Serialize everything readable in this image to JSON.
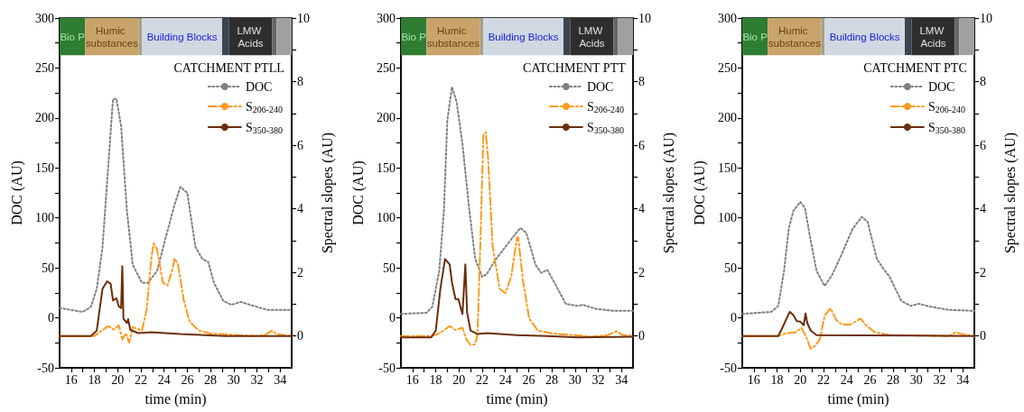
{
  "chart_data": [
    {
      "type": "line",
      "title": "CATCHMENT PTLL",
      "xlabel": "time (min)",
      "ylabel": "DOC (AU)",
      "y2label": "Spectral slopes (AU)",
      "xlim": [
        15,
        35
      ],
      "xticks": [
        16,
        {
          "value": 17,
          "label": null
        },
        18,
        {
          "value": 19,
          "label": null
        },
        20,
        {
          "value": 21,
          "label": null
        },
        22,
        {
          "value": 23,
          "label": null
        },
        24,
        {
          "value": 25,
          "label": null
        },
        26,
        {
          "value": 27,
          "label": null
        },
        28,
        {
          "value": 29,
          "label": null
        },
        30,
        {
          "value": 31,
          "label": null
        },
        32,
        {
          "value": 33,
          "label": null
        },
        34
      ],
      "ylim": [
        -50,
        300
      ],
      "yticks": [
        -50,
        {
          "value": -25,
          "label": null
        },
        0,
        {
          "value": 25,
          "label": null
        },
        50,
        {
          "value": 75,
          "label": null
        },
        100,
        {
          "value": 125,
          "label": null
        },
        150,
        {
          "value": 175,
          "label": null
        },
        200,
        {
          "value": 225,
          "label": null
        },
        250,
        {
          "value": 275,
          "label": null
        },
        300
      ],
      "y2lim": [
        -1,
        10
      ],
      "y2ticks": [
        0,
        {
          "value": 1,
          "label": null
        },
        2,
        {
          "value": 3,
          "label": null
        },
        4,
        {
          "value": 5,
          "label": null
        },
        6,
        {
          "value": 7,
          "label": null
        },
        8,
        {
          "value": 9,
          "label": null
        },
        10
      ],
      "grid": false,
      "legend": "top right",
      "marker": "none",
      "bands": [
        {
          "axis": "x",
          "from": 15,
          "to": 17.2,
          "label": "Bio P",
          "color": "#2e7d32"
        },
        {
          "axis": "x",
          "from": 17.2,
          "to": 21.8,
          "label": "Humic substances",
          "color": "#c8a46a"
        },
        {
          "axis": "x",
          "from": 21.8,
          "to": 22.1,
          "color": "#a89f86"
        },
        {
          "axis": "x",
          "from": 22.1,
          "to": 29,
          "label": "Building Blocks",
          "color": "#d0d8e2"
        },
        {
          "axis": "x",
          "from": 29,
          "to": 29.6,
          "color": "#3c4450"
        },
        {
          "axis": "x",
          "from": 29.6,
          "to": 33.3,
          "label": "LMW Acids",
          "color": "#2e2e2e"
        },
        {
          "axis": "x",
          "from": 33.3,
          "to": 33.7,
          "color": "#666666"
        },
        {
          "axis": "x",
          "from": 33.7,
          "to": 35,
          "color": "#a0a0a0"
        }
      ],
      "series": [
        {
          "name": "DOC",
          "color": "#808080",
          "line_style": "dotted",
          "axis": "y",
          "x": [
            15,
            16.4,
            17,
            17.7,
            18.2,
            18.7,
            19.1,
            19.6,
            19.9,
            20.3,
            20.8,
            21.3,
            22.1,
            22.6,
            23.4,
            24.2,
            24.9,
            25.4,
            26,
            26.7,
            27.3,
            27.8,
            28.3,
            29.1,
            29.8,
            30.6,
            31.7,
            32.9,
            35
          ],
          "values": [
            10,
            7,
            6,
            11,
            29,
            71,
            137,
            219,
            219,
            192,
            107,
            53,
            35,
            35,
            47,
            83,
            113,
            131,
            125,
            71,
            59,
            56,
            35,
            17,
            13,
            16,
            12,
            8,
            8
          ]
        },
        {
          "name": "S$_{206-240}$",
          "color": "#ff9a1a",
          "line_style": "dashed",
          "axis": "y2",
          "x": [
            15,
            18,
            18.7,
            19.2,
            19.7,
            20.1,
            20.4,
            20.7,
            21,
            21.3,
            22.1,
            22.5,
            22.9,
            23.1,
            23.4,
            23.9,
            24.3,
            24.7,
            24.9,
            25.2,
            25.7,
            26.2,
            27,
            28,
            31.9,
            32.7,
            33.3,
            33.7,
            35
          ],
          "values": [
            0,
            0,
            0.19,
            0.31,
            0.2,
            0.34,
            -0.11,
            0.08,
            -0.21,
            0.28,
            0.17,
            0.83,
            2.44,
            2.91,
            2.72,
            1.68,
            1.59,
            2.06,
            2.44,
            2.25,
            1.12,
            0.45,
            0.17,
            0.08,
            0,
            0.03,
            0.17,
            0.06,
            0
          ]
        },
        {
          "name": "S$_{350-380}$",
          "color": "#6b2e0a",
          "line_style": "solid",
          "axis": "y2",
          "x": [
            15,
            17.7,
            18.2,
            18.7,
            19.1,
            19.4,
            19.6,
            19.9,
            20.1,
            20.3,
            20.4,
            20.5,
            20.8,
            20.9,
            21.1,
            21.8,
            22.9,
            25.4,
            29.3,
            35
          ],
          "values": [
            0,
            0,
            0.17,
            1.49,
            1.72,
            1.64,
            1.12,
            1.19,
            0.93,
            0.88,
            2.2,
            0.55,
            0.41,
            0.53,
            0.19,
            0.09,
            0.12,
            0.06,
            0,
            0
          ]
        }
      ]
    },
    {
      "type": "line",
      "title": "CATCHMENT PTT",
      "xlabel": "time (min)",
      "ylabel": "DOC (AU)",
      "y2label": "Spectral slopes (AU)",
      "xlim": [
        15,
        35
      ],
      "xticks": [
        16,
        {
          "value": 17,
          "label": null
        },
        18,
        {
          "value": 19,
          "label": null
        },
        20,
        {
          "value": 21,
          "label": null
        },
        22,
        {
          "value": 23,
          "label": null
        },
        24,
        {
          "value": 25,
          "label": null
        },
        26,
        {
          "value": 27,
          "label": null
        },
        28,
        {
          "value": 29,
          "label": null
        },
        30,
        {
          "value": 31,
          "label": null
        },
        32,
        {
          "value": 33,
          "label": null
        },
        34
      ],
      "ylim": [
        -50,
        300
      ],
      "yticks": [
        -50,
        {
          "value": -25,
          "label": null
        },
        0,
        {
          "value": 25,
          "label": null
        },
        50,
        {
          "value": 75,
          "label": null
        },
        100,
        {
          "value": 125,
          "label": null
        },
        150,
        {
          "value": 175,
          "label": null
        },
        200,
        {
          "value": 225,
          "label": null
        },
        250,
        {
          "value": 275,
          "label": null
        },
        300
      ],
      "y2lim": [
        -1,
        10
      ],
      "y2ticks": [
        0,
        {
          "value": 1,
          "label": null
        },
        2,
        {
          "value": 3,
          "label": null
        },
        4,
        {
          "value": 5,
          "label": null
        },
        6,
        {
          "value": 7,
          "label": null
        },
        8,
        {
          "value": 9,
          "label": null
        },
        10
      ],
      "grid": false,
      "legend": "top right",
      "marker": "none",
      "bands": [
        {
          "axis": "x",
          "from": 15,
          "to": 17.2,
          "label": "Bio P",
          "color": "#2e7d32"
        },
        {
          "axis": "x",
          "from": 17.2,
          "to": 21.8,
          "label": "Humic substances",
          "color": "#c8a46a"
        },
        {
          "axis": "x",
          "from": 21.8,
          "to": 22.1,
          "color": "#a89f86"
        },
        {
          "axis": "x",
          "from": 22.1,
          "to": 29,
          "label": "Building Blocks",
          "color": "#d0d8e2"
        },
        {
          "axis": "x",
          "from": 29,
          "to": 29.6,
          "color": "#3c4450"
        },
        {
          "axis": "x",
          "from": 29.6,
          "to": 33.3,
          "label": "LMW Acids",
          "color": "#2e2e2e"
        },
        {
          "axis": "x",
          "from": 33.3,
          "to": 33.7,
          "color": "#666666"
        },
        {
          "axis": "x",
          "from": 33.7,
          "to": 35,
          "color": "#a0a0a0"
        }
      ],
      "series": [
        {
          "name": "DOC",
          "color": "#808080",
          "line_style": "dotted",
          "axis": "y",
          "x": [
            15,
            17.2,
            17.7,
            18.3,
            18.7,
            19,
            19.4,
            19.8,
            20.3,
            20.9,
            21.4,
            22,
            22.4,
            23.2,
            24,
            24.8,
            25.3,
            25.8,
            26.6,
            27.1,
            27.6,
            28.1,
            29.2,
            30.2,
            30.7,
            31.8,
            33.3,
            35
          ],
          "values": [
            4,
            5,
            11,
            47,
            107,
            198,
            231,
            216,
            174,
            107,
            59,
            41,
            44,
            59,
            71,
            83,
            90,
            85,
            53,
            45,
            48,
            38,
            14,
            12,
            13,
            9,
            7,
            7
          ]
        },
        {
          "name": "S$_{206-240}$",
          "color": "#ff9a1a",
          "line_style": "dashed",
          "axis": "y2",
          "x": [
            15,
            17.7,
            18.3,
            19.2,
            19.7,
            20.3,
            20.65,
            21,
            21.4,
            21.6,
            21.85,
            22.1,
            22.3,
            22.5,
            22.9,
            23.5,
            24,
            24.5,
            25,
            25.1,
            25.5,
            26.05,
            26.8,
            28.1,
            31.5,
            32.8,
            33.6,
            34.1,
            35
          ],
          "values": [
            0,
            0,
            0.08,
            0.31,
            0.19,
            0.26,
            -0.11,
            -0.28,
            -0.26,
            0.08,
            3.01,
            6.31,
            6.41,
            5.65,
            2.82,
            1.49,
            1.35,
            1.87,
            3.1,
            3.1,
            1.78,
            0.55,
            0.17,
            0.08,
            -0.02,
            0.03,
            0.15,
            0.03,
            0
          ]
        },
        {
          "name": "S$_{350-380}$",
          "color": "#6b2e0a",
          "line_style": "solid",
          "axis": "y2",
          "x": [
            15,
            17.6,
            18,
            18.4,
            18.8,
            19.2,
            19.4,
            19.7,
            19.95,
            20.3,
            20.55,
            20.7,
            21,
            21.6,
            22.4,
            25,
            27.6,
            30.2,
            35
          ],
          "values": [
            -0.04,
            -0.04,
            0.17,
            1.49,
            2.42,
            2.25,
            1.68,
            1.16,
            1.16,
            0.69,
            2.25,
            0.74,
            0.17,
            0.06,
            0.09,
            0.03,
            0,
            -0.04,
            -0.02
          ]
        }
      ]
    },
    {
      "type": "line",
      "title": "CATCHMENT PTC",
      "xlabel": "time (min)",
      "ylabel": "DOC (AU)",
      "y2label": "Spectral slopes (AU)",
      "xlim": [
        15,
        35
      ],
      "xticks": [
        16,
        {
          "value": 17,
          "label": null
        },
        18,
        {
          "value": 19,
          "label": null
        },
        20,
        {
          "value": 21,
          "label": null
        },
        22,
        {
          "value": 23,
          "label": null
        },
        24,
        {
          "value": 25,
          "label": null
        },
        26,
        {
          "value": 27,
          "label": null
        },
        28,
        {
          "value": 29,
          "label": null
        },
        30,
        {
          "value": 31,
          "label": null
        },
        32,
        {
          "value": 33,
          "label": null
        },
        34
      ],
      "ylim": [
        -50,
        300
      ],
      "yticks": [
        -50,
        {
          "value": -25,
          "label": null
        },
        0,
        {
          "value": 25,
          "label": null
        },
        50,
        {
          "value": 75,
          "label": null
        },
        100,
        {
          "value": 125,
          "label": null
        },
        150,
        {
          "value": 175,
          "label": null
        },
        200,
        {
          "value": 225,
          "label": null
        },
        250,
        {
          "value": 275,
          "label": null
        },
        300
      ],
      "y2lim": [
        -1,
        10
      ],
      "y2ticks": [
        0,
        {
          "value": 1,
          "label": null
        },
        2,
        {
          "value": 3,
          "label": null
        },
        4,
        {
          "value": 5,
          "label": null
        },
        6,
        {
          "value": 7,
          "label": null
        },
        8,
        {
          "value": 9,
          "label": null
        },
        10
      ],
      "grid": false,
      "legend": "top right",
      "marker": "none",
      "bands": [
        {
          "axis": "x",
          "from": 15,
          "to": 17.2,
          "label": "Bio P",
          "color": "#2e7d32"
        },
        {
          "axis": "x",
          "from": 17.2,
          "to": 21.8,
          "label": "Humic substances",
          "color": "#c8a46a"
        },
        {
          "axis": "x",
          "from": 21.8,
          "to": 22.1,
          "color": "#a89f86"
        },
        {
          "axis": "x",
          "from": 22.1,
          "to": 29,
          "label": "Building Blocks",
          "color": "#d0d8e2"
        },
        {
          "axis": "x",
          "from": 29,
          "to": 29.6,
          "color": "#3c4450"
        },
        {
          "axis": "x",
          "from": 29.6,
          "to": 33.3,
          "label": "LMW Acids",
          "color": "#2e2e2e"
        },
        {
          "axis": "x",
          "from": 33.3,
          "to": 33.7,
          "color": "#666666"
        },
        {
          "axis": "x",
          "from": 33.7,
          "to": 35,
          "color": "#a0a0a0"
        }
      ],
      "series": [
        {
          "name": "DOC",
          "color": "#808080",
          "line_style": "dotted",
          "axis": "y",
          "x": [
            15,
            17.5,
            18.1,
            18.6,
            19,
            19.4,
            20,
            20.4,
            20.9,
            21.4,
            22.1,
            22.7,
            23.5,
            24.5,
            25.3,
            25.8,
            26.6,
            27.1,
            27.7,
            28.7,
            29.5,
            30.2,
            31.3,
            32.8,
            35
          ],
          "values": [
            4,
            6,
            12,
            47,
            89,
            107,
            116,
            110,
            77,
            47,
            32,
            42,
            62,
            89,
            101,
            96,
            59,
            50,
            41,
            17,
            12,
            14,
            11,
            8,
            7
          ]
        },
        {
          "name": "S$_{206-240}$",
          "color": "#ff9a1a",
          "line_style": "dashed",
          "axis": "y2",
          "x": [
            15,
            18.1,
            18.8,
            19.6,
            20.1,
            20.5,
            20.9,
            21.3,
            21.7,
            22.1,
            22.6,
            23.1,
            23.6,
            24.3,
            25.2,
            25.6,
            26.4,
            27.7,
            32.8,
            33.4,
            33.9,
            35
          ],
          "values": [
            0,
            0,
            0.09,
            0.12,
            0.26,
            -0.02,
            -0.4,
            -0.3,
            -0.09,
            0.64,
            0.88,
            0.5,
            0.36,
            0.36,
            0.55,
            0.36,
            0.12,
            0.03,
            0,
            0.12,
            0.06,
            0
          ]
        },
        {
          "name": "S$_{350-380}$",
          "color": "#6b2e0a",
          "line_style": "solid",
          "axis": "y2",
          "x": [
            15,
            18.1,
            18.4,
            19,
            19.1,
            19.4,
            19.7,
            20,
            20.3,
            20.45,
            20.6,
            20.9,
            21.4,
            35
          ],
          "values": [
            0,
            0,
            0.22,
            0.69,
            0.76,
            0.66,
            0.47,
            0.45,
            0.34,
            0.71,
            0.41,
            0.17,
            0.03,
            0
          ]
        }
      ]
    }
  ]
}
